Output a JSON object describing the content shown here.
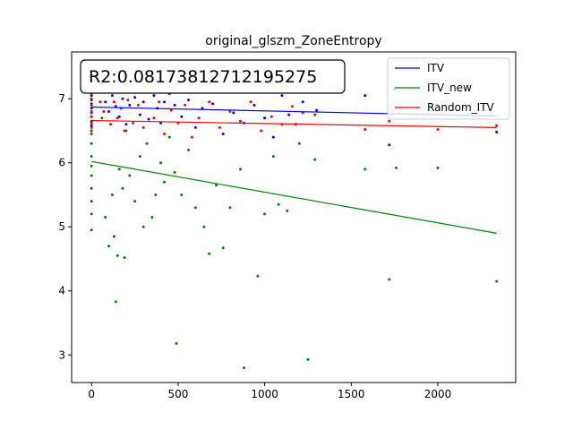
{
  "chart_data": {
    "type": "scatter",
    "title": "original_glszm_ZoneEntropy",
    "xlabel": "",
    "ylabel": "",
    "xlim": [
      -115,
      2450
    ],
    "ylim": [
      2.57,
      7.73
    ],
    "xticks": [
      0,
      500,
      1000,
      1500,
      2000
    ],
    "yticks": [
      3,
      4,
      5,
      6,
      7
    ],
    "annotation": "R2:0.08173812712195275",
    "legend_position": "top-right",
    "series": [
      {
        "name": "ITV",
        "color": "#0000ff",
        "fit": [
          [
            0,
            6.87
          ],
          [
            2340,
            6.73
          ]
        ],
        "points": [
          [
            0,
            7.05
          ],
          [
            0,
            6.98
          ],
          [
            0,
            6.92
          ],
          [
            0,
            6.85
          ],
          [
            0,
            6.78
          ],
          [
            0,
            6.72
          ],
          [
            0,
            6.65
          ],
          [
            0,
            6.58
          ],
          [
            0,
            6.5
          ],
          [
            60,
            7.1
          ],
          [
            80,
            6.95
          ],
          [
            100,
            6.8
          ],
          [
            120,
            7.05
          ],
          [
            140,
            6.88
          ],
          [
            160,
            6.72
          ],
          [
            180,
            7.0
          ],
          [
            200,
            6.6
          ],
          [
            220,
            6.9
          ],
          [
            250,
            7.02
          ],
          [
            280,
            6.75
          ],
          [
            300,
            6.95
          ],
          [
            330,
            6.68
          ],
          [
            360,
            7.05
          ],
          [
            380,
            6.85
          ],
          [
            400,
            6.62
          ],
          [
            420,
            6.95
          ],
          [
            450,
            7.08
          ],
          [
            480,
            6.9
          ],
          [
            520,
            6.72
          ],
          [
            560,
            6.98
          ],
          [
            600,
            6.55
          ],
          [
            640,
            6.85
          ],
          [
            700,
            6.92
          ],
          [
            760,
            6.45
          ],
          [
            820,
            6.78
          ],
          [
            880,
            6.62
          ],
          [
            940,
            6.9
          ],
          [
            1000,
            6.7
          ],
          [
            1050,
            6.4
          ],
          [
            1100,
            7.05
          ],
          [
            1140,
            6.75
          ],
          [
            1180,
            6.6
          ],
          [
            1220,
            6.95
          ],
          [
            1300,
            6.82
          ],
          [
            1350,
            7.15
          ],
          [
            1580,
            7.05
          ],
          [
            1720,
            6.28
          ],
          [
            1750,
            7.15
          ],
          [
            2340,
            6.48
          ]
        ]
      },
      {
        "name": "ITV_new",
        "color": "#008000",
        "fit": [
          [
            0,
            6.02
          ],
          [
            2340,
            4.9
          ]
        ],
        "points": [
          [
            0,
            6.5
          ],
          [
            0,
            6.3
          ],
          [
            0,
            6.1
          ],
          [
            0,
            5.95
          ],
          [
            0,
            5.8
          ],
          [
            0,
            5.6
          ],
          [
            0,
            5.4
          ],
          [
            0,
            5.2
          ],
          [
            0,
            4.95
          ],
          [
            60,
            6.7
          ],
          [
            80,
            5.15
          ],
          [
            100,
            4.7
          ],
          [
            120,
            5.5
          ],
          [
            130,
            4.85
          ],
          [
            140,
            3.83
          ],
          [
            150,
            4.55
          ],
          [
            160,
            5.9
          ],
          [
            180,
            5.6
          ],
          [
            190,
            4.52
          ],
          [
            200,
            6.5
          ],
          [
            220,
            5.8
          ],
          [
            250,
            5.4
          ],
          [
            280,
            6.1
          ],
          [
            300,
            5.0
          ],
          [
            320,
            6.3
          ],
          [
            350,
            5.15
          ],
          [
            370,
            5.5
          ],
          [
            400,
            6.0
          ],
          [
            420,
            5.7
          ],
          [
            450,
            6.4
          ],
          [
            480,
            5.85
          ],
          [
            490,
            3.18
          ],
          [
            520,
            5.5
          ],
          [
            560,
            6.2
          ],
          [
            600,
            5.3
          ],
          [
            650,
            5.0
          ],
          [
            680,
            4.58
          ],
          [
            720,
            5.65
          ],
          [
            760,
            4.67
          ],
          [
            800,
            5.3
          ],
          [
            860,
            5.9
          ],
          [
            880,
            2.8
          ],
          [
            960,
            4.23
          ],
          [
            1000,
            5.2
          ],
          [
            1050,
            6.1
          ],
          [
            1080,
            5.35
          ],
          [
            1130,
            5.25
          ],
          [
            1200,
            6.3
          ],
          [
            1250,
            2.93
          ],
          [
            1290,
            6.05
          ],
          [
            1580,
            5.9
          ],
          [
            1720,
            4.18
          ],
          [
            1760,
            5.92
          ],
          [
            2000,
            5.92
          ],
          [
            2340,
            4.15
          ]
        ]
      },
      {
        "name": "Random_ITV",
        "color": "#ff0000",
        "fit": [
          [
            0,
            6.66
          ],
          [
            2340,
            6.55
          ]
        ],
        "points": [
          [
            0,
            7.08
          ],
          [
            0,
            7.0
          ],
          [
            0,
            6.9
          ],
          [
            0,
            6.8
          ],
          [
            0,
            6.72
          ],
          [
            0,
            6.62
          ],
          [
            0,
            6.55
          ],
          [
            0,
            6.45
          ],
          [
            50,
            6.95
          ],
          [
            70,
            6.8
          ],
          [
            90,
            7.1
          ],
          [
            110,
            6.6
          ],
          [
            130,
            6.95
          ],
          [
            150,
            6.7
          ],
          [
            170,
            6.85
          ],
          [
            190,
            6.5
          ],
          [
            210,
            6.98
          ],
          [
            240,
            6.62
          ],
          [
            270,
            6.9
          ],
          [
            300,
            6.55
          ],
          [
            330,
            7.12
          ],
          [
            360,
            6.7
          ],
          [
            390,
            6.95
          ],
          [
            420,
            6.45
          ],
          [
            460,
            6.82
          ],
          [
            500,
            6.62
          ],
          [
            540,
            6.9
          ],
          [
            580,
            6.4
          ],
          [
            620,
            6.7
          ],
          [
            680,
            6.95
          ],
          [
            740,
            6.55
          ],
          [
            800,
            6.8
          ],
          [
            860,
            6.65
          ],
          [
            920,
            6.95
          ],
          [
            980,
            6.5
          ],
          [
            1040,
            6.72
          ],
          [
            1100,
            6.6
          ],
          [
            1160,
            6.88
          ],
          [
            1220,
            6.78
          ],
          [
            1290,
            6.75
          ],
          [
            1580,
            6.52
          ],
          [
            1720,
            6.65
          ],
          [
            2000,
            6.52
          ],
          [
            2340,
            6.58
          ]
        ]
      }
    ]
  }
}
